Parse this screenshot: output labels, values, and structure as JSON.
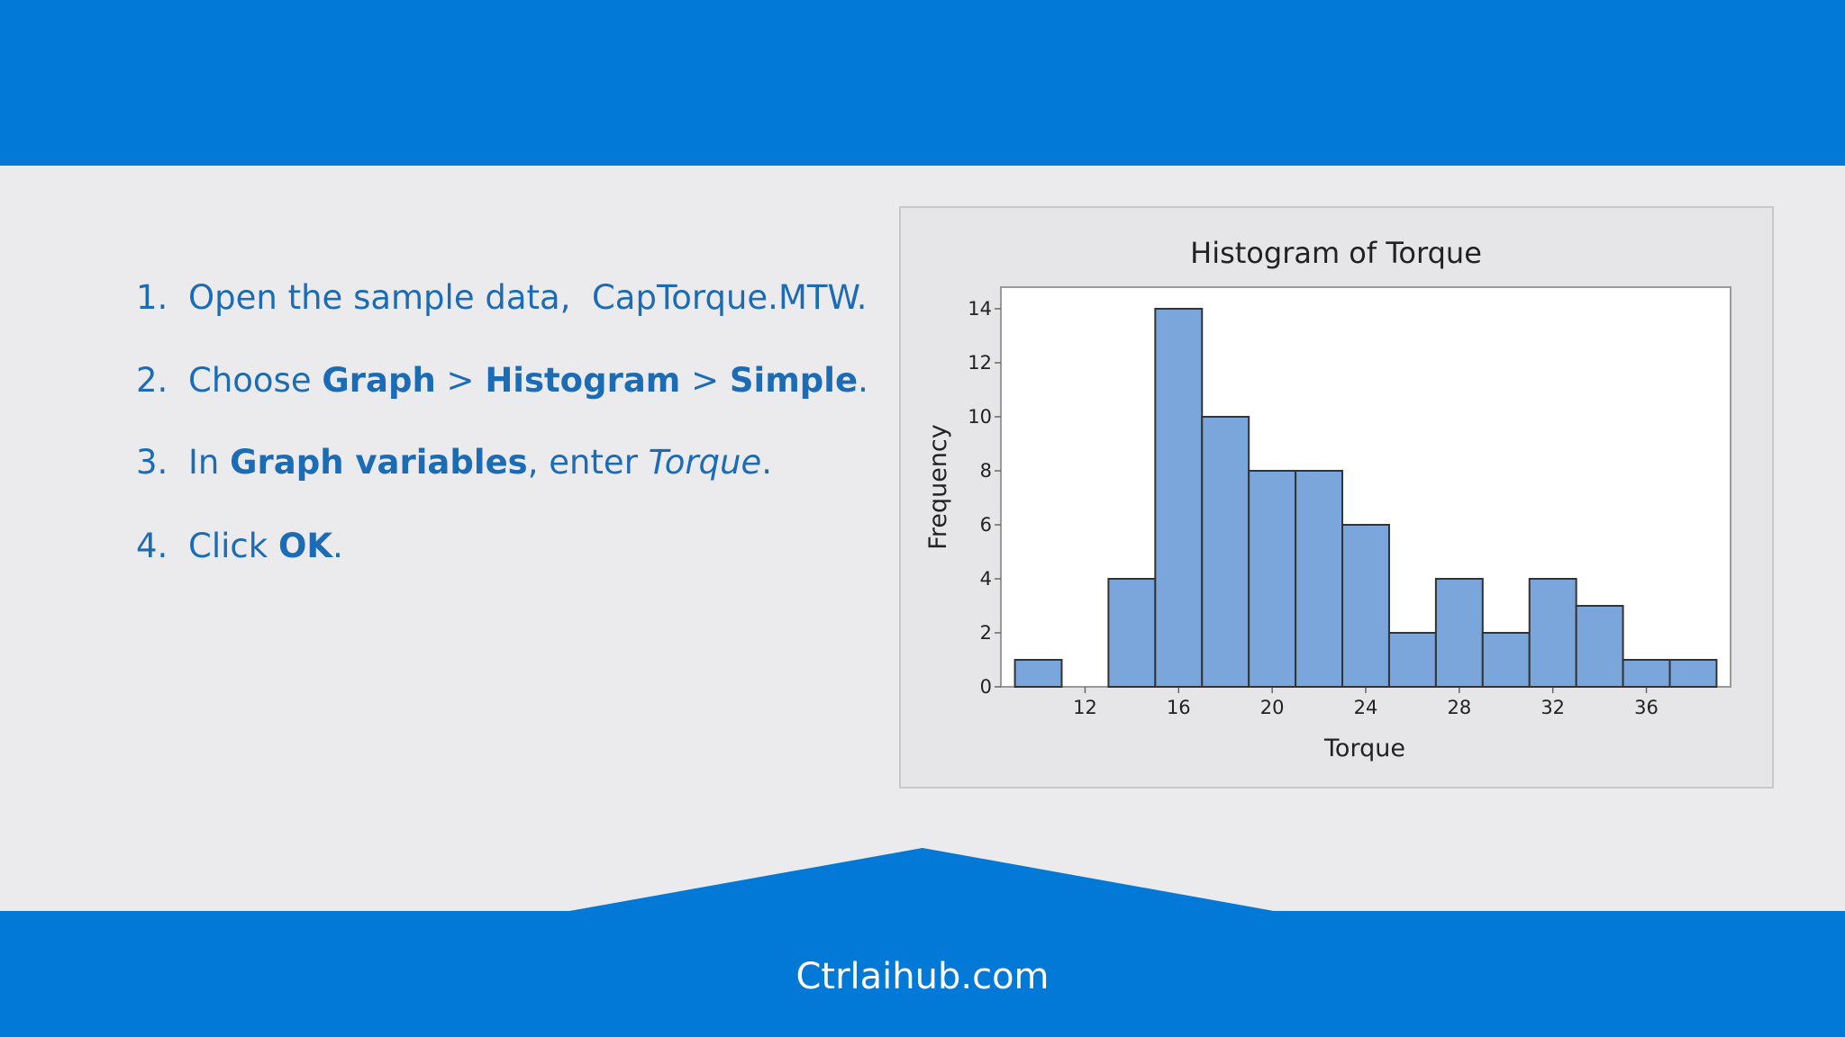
{
  "steps": [
    {
      "number": "1.",
      "parts": [
        {
          "text": "Open the sample data,  CapTorque.MTW."
        }
      ]
    },
    {
      "number": "2.",
      "parts": [
        {
          "text": "Choose "
        },
        {
          "text": "Graph",
          "bold": true
        },
        {
          "text": " > "
        },
        {
          "text": "Histogram",
          "bold": true
        },
        {
          "text": " > "
        },
        {
          "text": "Simple",
          "bold": true
        },
        {
          "text": "."
        }
      ]
    },
    {
      "number": "3.",
      "parts": [
        {
          "text": "In "
        },
        {
          "text": "Graph variables",
          "bold": true
        },
        {
          "text": ", enter "
        },
        {
          "text": "Torque",
          "italic": true
        },
        {
          "text": "."
        }
      ]
    },
    {
      "number": "4.",
      "parts": [
        {
          "text": "Click "
        },
        {
          "text": "OK",
          "bold": true
        },
        {
          "text": "."
        }
      ]
    }
  ],
  "footer": "Ctrlaihub.com",
  "chart_data": {
    "type": "histogram",
    "title": "Histogram of Torque",
    "x_label": "Torque",
    "y_label": "Frequency",
    "bins": [
      9,
      11,
      13,
      15,
      17,
      19,
      21,
      23,
      25,
      27,
      29,
      31,
      33,
      35,
      37,
      39
    ],
    "values": [
      1,
      0,
      4,
      14,
      10,
      8,
      8,
      6,
      2,
      4,
      2,
      4,
      3,
      1,
      1
    ],
    "color": "#7ba6db",
    "xlim": [
      8.4,
      39.6
    ],
    "xticks": [
      12,
      16,
      20,
      24,
      28,
      32,
      36
    ],
    "ylim": [
      0,
      14.8
    ],
    "yticks": [
      0,
      2,
      4,
      6,
      8,
      10,
      12,
      14
    ]
  }
}
